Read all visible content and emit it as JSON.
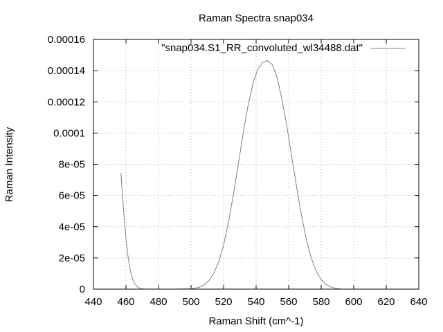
{
  "chart_data": {
    "type": "line",
    "title": "Raman Spectra snap034",
    "xlabel": "Raman Shift (cm^-1)",
    "ylabel": "Raman Intensity",
    "xlim": [
      440,
      640
    ],
    "ylim": [
      0,
      0.00016
    ],
    "grid": true,
    "legend_position": "top-right",
    "x_ticks": [
      {
        "value": 440,
        "label": "440"
      },
      {
        "value": 460,
        "label": "460"
      },
      {
        "value": 480,
        "label": "480"
      },
      {
        "value": 500,
        "label": "500"
      },
      {
        "value": 520,
        "label": "520"
      },
      {
        "value": 540,
        "label": "540"
      },
      {
        "value": 560,
        "label": "560"
      },
      {
        "value": 580,
        "label": "580"
      },
      {
        "value": 600,
        "label": "600"
      },
      {
        "value": 620,
        "label": "620"
      },
      {
        "value": 640,
        "label": "640"
      }
    ],
    "y_ticks": [
      {
        "value": 0,
        "label": "0"
      },
      {
        "value": 2e-05,
        "label": "2e-05"
      },
      {
        "value": 4e-05,
        "label": "4e-05"
      },
      {
        "value": 6e-05,
        "label": "6e-05"
      },
      {
        "value": 8e-05,
        "label": "8e-05"
      },
      {
        "value": 0.0001,
        "label": "0.0001"
      },
      {
        "value": 0.00012,
        "label": "0.00012"
      },
      {
        "value": 0.00014,
        "label": "0.00014"
      },
      {
        "value": 0.00016,
        "label": "0.00016"
      }
    ],
    "series": [
      {
        "name": "\"snap034.S1_RR_convoluted_wl34488.dat\"",
        "color": "#808080",
        "points": [
          [
            456.9,
            7.45e-05
          ],
          [
            458,
            5.8e-05
          ],
          [
            459,
            4.4e-05
          ],
          [
            460,
            3.25e-05
          ],
          [
            461,
            2.3e-05
          ],
          [
            462,
            1.58e-05
          ],
          [
            463,
            1.05e-05
          ],
          [
            464,
            6.8e-06
          ],
          [
            465,
            4.2e-06
          ],
          [
            466,
            2.6e-06
          ],
          [
            467,
            1.5e-06
          ],
          [
            468,
            8e-07
          ],
          [
            470,
            2e-07
          ],
          [
            472,
            5e-08
          ],
          [
            474,
            0.0
          ],
          [
            480,
            0.0
          ],
          [
            490,
            0.0
          ],
          [
            500,
            2e-07
          ],
          [
            505,
            1.1e-06
          ],
          [
            508,
            2.7e-06
          ],
          [
            511,
            5.5e-06
          ],
          [
            514,
            1.02e-05
          ],
          [
            517,
            1.75e-05
          ],
          [
            520,
            2.83e-05
          ],
          [
            523,
            4.28e-05
          ],
          [
            526,
            6.04e-05
          ],
          [
            529,
            7.97e-05
          ],
          [
            532,
            9.95e-05
          ],
          [
            535,
            0.0001174
          ],
          [
            538,
            0.0001316
          ],
          [
            541,
            0.0001408
          ],
          [
            544,
            0.0001452
          ],
          [
            547,
            0.0001465
          ],
          [
            550,
            0.0001438
          ],
          [
            553,
            0.0001351
          ],
          [
            556,
            0.0001212
          ],
          [
            559,
            0.0001038
          ],
          [
            562,
            8.42e-05
          ],
          [
            565,
            6.47e-05
          ],
          [
            568,
            4.66e-05
          ],
          [
            571,
            3.13e-05
          ],
          [
            574,
            1.96e-05
          ],
          [
            577,
            1.14e-05
          ],
          [
            580,
            6.1e-06
          ],
          [
            583,
            3e-06
          ],
          [
            586,
            1.3e-06
          ],
          [
            589,
            5e-07
          ],
          [
            592,
            1e-07
          ],
          [
            593,
            0.0
          ]
        ]
      }
    ]
  }
}
